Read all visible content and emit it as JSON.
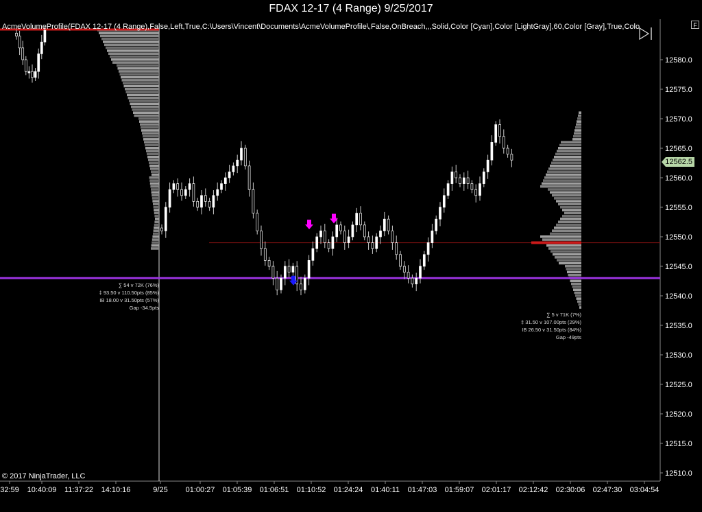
{
  "window": {
    "title": "FDAX 12-17 (4 Range)  9/25/2017"
  },
  "indicator_label": "AcmeVolumeProfile(FDAX 12-17 (4 Range),False,Left,True,C:\\Users\\Vincent\\Documents\\AcmeVolumeProfile\\,False,OnBreach,,,Solid,Color [Cyan],Color [LightGray],60,Color [Gray],True,Colo",
  "corner_button": "F",
  "copyright": "© 2017 NinjaTrader, LLC",
  "current_price": "12562.5",
  "profile1_stats": [
    "∑ 54 v 72K (76%)",
    "‡ 93.50 v 110.50pts (85%)",
    "IB 18.00 v 31.50pts (57%)",
    "Gap -34.5pts"
  ],
  "profile2_stats": [
    "∑ 5 v 71K (7%)",
    "‡ 31.50 v 107.00pts (29%)",
    "IB 26.50 v 31.50pts (84%)",
    "Gap -49pts"
  ],
  "colors": {
    "background": "#000000",
    "poc": "#cc1a1a",
    "level": "#9933dd",
    "up": "#ffffff",
    "down": "#ffffff",
    "arrow_magenta": "#ff00ff",
    "arrow_blue": "#1a1aff",
    "profile": "#9a9a9a",
    "marker": "#b8d7a8"
  },
  "chart_data": {
    "type": "candlestick",
    "title": "FDAX 12-17 (4 Range)  9/25/2017",
    "y_ticks": [
      12580.0,
      12575.0,
      12570.0,
      12565.0,
      12560.0,
      12555.0,
      12550.0,
      12545.0,
      12540.0,
      12535.0,
      12530.0,
      12525.0,
      12520.0,
      12515.0,
      12510.0
    ],
    "ylim": [
      12509,
      12585
    ],
    "x_ticks": [
      "32:59",
      "10:40:09",
      "11:37:22",
      "14:10:16",
      "9/25",
      "01:00:27",
      "01:05:39",
      "01:06:51",
      "01:10:52",
      "01:24:24",
      "01:40:11",
      "01:47:03",
      "01:59:07",
      "02:01:17",
      "02:12:42",
      "02:30:06",
      "02:47:30",
      "03:04:54"
    ],
    "current_price": 12562.5,
    "horizontal_levels": [
      {
        "price": 12543.0,
        "color": "#9933dd"
      }
    ],
    "poc_levels": [
      12549.0,
      12584.5
    ],
    "close_path_day1": [
      12584,
      12582,
      12580,
      12578,
      12578,
      12577,
      12578,
      12581,
      12583,
      12585
    ],
    "close_path_day2": [
      12551,
      12555,
      12558,
      12559,
      12558,
      12557,
      12558,
      12559,
      12556,
      12555,
      12557,
      12556,
      12555,
      12557,
      12558,
      12559,
      12560,
      12561,
      12562,
      12563,
      12565,
      12562,
      12558,
      12554,
      12551,
      12548,
      12546,
      12545,
      12543,
      12541,
      12543,
      12545,
      12544,
      12545,
      12542,
      12541,
      12543,
      12546,
      12548,
      12550,
      12551,
      12549,
      12548,
      12550,
      12552,
      12551,
      12549,
      12550,
      12552,
      12554,
      12552,
      12550,
      12549,
      12548,
      12550,
      12551,
      12553,
      12551,
      12549,
      12547,
      12545,
      12544,
      12543,
      12542,
      12543,
      12545,
      12547,
      12549,
      12551,
      12553,
      12555,
      12557,
      12559,
      12561,
      12560,
      12559,
      12560,
      12559,
      12558,
      12557,
      12559,
      12561,
      12563,
      12566,
      12569,
      12567,
      12565,
      12564,
      12563
    ],
    "arrows": [
      {
        "x": "01:06:51",
        "price": 12542.0,
        "direction": "down",
        "color": "#1a1aff"
      },
      {
        "x": "01:10:52",
        "price": 12551.5,
        "direction": "down",
        "color": "#ff00ff"
      },
      {
        "x": "01:24:24",
        "price": 12552.5,
        "direction": "down",
        "color": "#ff00ff"
      }
    ],
    "profile_session1_range": [
      12548,
      12585
    ],
    "profile_session2_range": [
      12538,
      12571
    ]
  }
}
